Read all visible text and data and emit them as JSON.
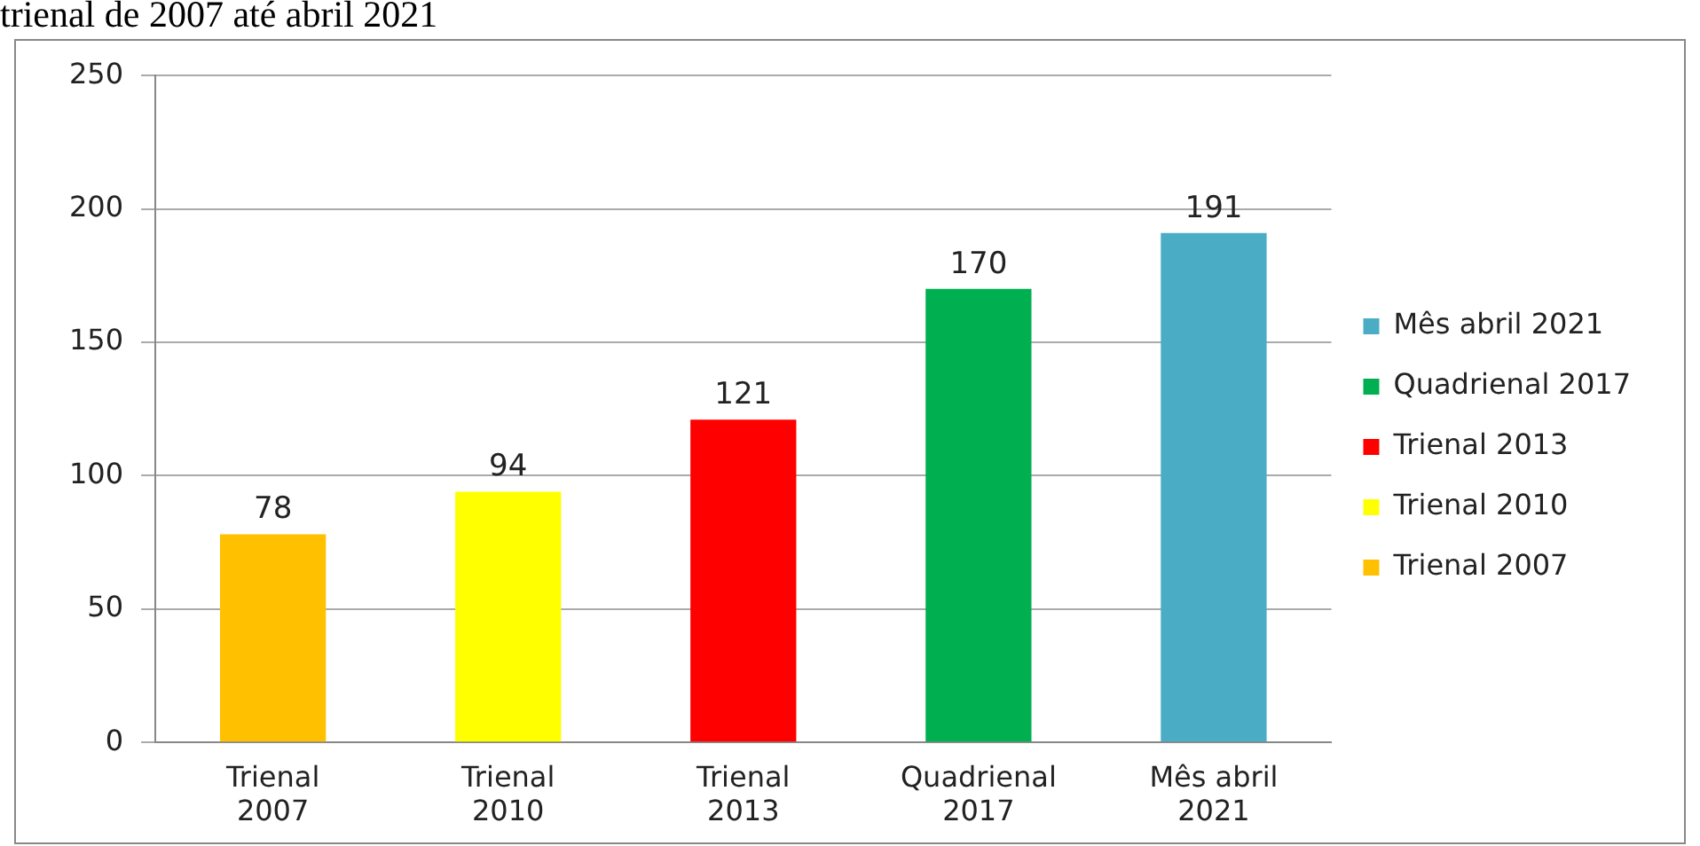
{
  "chart_data": {
    "type": "bar",
    "title": "trienal de 2007 até abril 2021",
    "categories": [
      "Trienal 2007",
      "Trienal 2010",
      "Trienal 2013",
      "Quadrienal 2017",
      "Mês abril 2021"
    ],
    "series": [
      {
        "name": "Trienal 2007",
        "color": "#ffc000",
        "values": [
          78,
          null,
          null,
          null,
          null
        ]
      },
      {
        "name": "Trienal 2010",
        "color": "#ffff00",
        "values": [
          null,
          94,
          null,
          null,
          null
        ]
      },
      {
        "name": "Trienal 2013",
        "color": "#ff0000",
        "values": [
          null,
          null,
          121,
          null,
          null
        ]
      },
      {
        "name": "Quadrienal 2017",
        "color": "#00b050",
        "values": [
          null,
          null,
          null,
          170,
          null
        ]
      },
      {
        "name": "Mês abril 2021",
        "color": "#4bacc6",
        "values": [
          null,
          null,
          null,
          null,
          191
        ]
      }
    ],
    "ylim": [
      0,
      250
    ],
    "yticks": [
      0,
      50,
      100,
      150,
      200,
      250
    ],
    "grid": "y",
    "legend": "right",
    "data_labels": true
  }
}
